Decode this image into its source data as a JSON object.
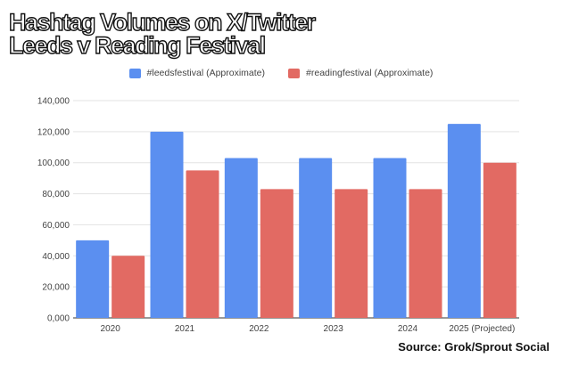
{
  "title_lines": [
    "Hashtag Volumes on X/Twitter",
    "Leeds v Reading Festival"
  ],
  "source": "Source: Grok/Sprout Social",
  "colors": {
    "leeds": "#5b8ff0",
    "reading": "#e26a63",
    "grid": "#e3e3e3",
    "axis": "#444444"
  },
  "chart_data": {
    "type": "bar",
    "categories": [
      "2020",
      "2021",
      "2022",
      "2023",
      "2024",
      "2025 (Projected)"
    ],
    "series": [
      {
        "name": "#leedsfestival (Approximate)",
        "values": [
          50000,
          120000,
          103000,
          103000,
          103000,
          125000
        ]
      },
      {
        "name": "#readingfestival (Approximate)",
        "values": [
          40000,
          95000,
          83000,
          83000,
          83000,
          100000
        ]
      }
    ],
    "y_ticks": [
      "0,000",
      "20,000",
      "40,000",
      "60,000",
      "80,000",
      "100,000",
      "120,000",
      "140,000"
    ],
    "ylim": [
      0,
      140000
    ],
    "grid": true,
    "legend_position": "top"
  }
}
